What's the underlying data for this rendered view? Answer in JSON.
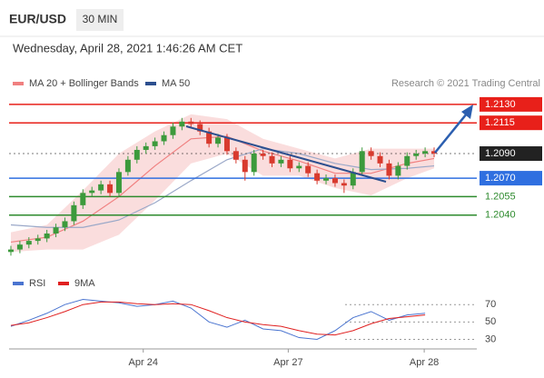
{
  "header": {
    "symbol": "EUR/USD",
    "timeframe": "30 MIN",
    "timestamp": "Wednesday, April 28, 2021 1:46:26 AM CET"
  },
  "chart_data": [
    {
      "type": "candlestick",
      "credit": "Research © 2021 Trading Central",
      "xlim": [
        -0.2,
        47.2
      ],
      "ylim": [
        1.2008,
        1.2141
      ],
      "up_color": "#3c9a3c",
      "down_color": "#d83a2e",
      "candles": {
        "open": [
          1.201,
          1.2012,
          1.2016,
          1.2019,
          1.2021,
          1.2025,
          1.203,
          1.2035,
          1.2048,
          1.2058,
          1.206,
          1.2065,
          1.2058,
          1.2075,
          1.2085,
          1.2093,
          1.2096,
          1.21,
          1.2105,
          1.2112,
          1.2116,
          1.2114,
          1.2108,
          1.2098,
          1.2103,
          1.2092,
          1.2085,
          1.2075,
          1.209,
          1.2088,
          1.2082,
          1.2085,
          1.2078,
          1.208,
          1.2074,
          1.2068,
          1.207,
          1.2066,
          1.2064,
          1.2075,
          1.2092,
          1.2088,
          1.2082,
          1.2072,
          1.208,
          1.2088,
          1.209,
          1.2092
        ],
        "high": [
          1.2015,
          1.2019,
          1.2022,
          1.2024,
          1.2028,
          1.2033,
          1.2038,
          1.2051,
          1.2061,
          1.2063,
          1.2068,
          1.2068,
          1.2078,
          1.2088,
          1.2096,
          1.2099,
          1.2103,
          1.2108,
          1.2115,
          1.2119,
          1.2119,
          1.2117,
          1.2111,
          1.2106,
          1.2106,
          1.2095,
          1.2088,
          1.2093,
          1.2093,
          1.2091,
          1.2088,
          1.2088,
          1.2083,
          1.2083,
          1.2077,
          1.2073,
          1.2073,
          1.2069,
          1.2078,
          1.2095,
          1.2095,
          1.2091,
          1.2085,
          1.2083,
          1.2091,
          1.2093,
          1.2095,
          1.2095
        ],
        "low": [
          1.2007,
          1.2009,
          1.2013,
          1.2016,
          1.2018,
          1.2022,
          1.2027,
          1.2032,
          1.2045,
          1.2055,
          1.2057,
          1.2055,
          1.2055,
          1.2072,
          1.2082,
          1.209,
          1.2093,
          1.2097,
          1.2102,
          1.2109,
          1.2111,
          1.2105,
          1.2095,
          1.2095,
          1.2089,
          1.2082,
          1.2068,
          1.2072,
          1.2085,
          1.2079,
          1.2079,
          1.2075,
          1.2075,
          1.2071,
          1.2065,
          1.2065,
          1.2063,
          1.2058,
          1.2061,
          1.2072,
          1.2085,
          1.2079,
          1.2069,
          1.2069,
          1.2077,
          1.2085,
          1.2087,
          1.2087
        ],
        "close": [
          1.2012,
          1.2016,
          1.2019,
          1.2021,
          1.2025,
          1.203,
          1.2035,
          1.2048,
          1.2058,
          1.206,
          1.2065,
          1.2058,
          1.2075,
          1.2085,
          1.2093,
          1.2096,
          1.21,
          1.2105,
          1.2112,
          1.2116,
          1.2114,
          1.2108,
          1.2098,
          1.2103,
          1.2092,
          1.2085,
          1.2075,
          1.209,
          1.2088,
          1.2082,
          1.2085,
          1.2078,
          1.208,
          1.2074,
          1.2068,
          1.207,
          1.2066,
          1.2064,
          1.2075,
          1.2092,
          1.2088,
          1.2082,
          1.2072,
          1.208,
          1.2088,
          1.209,
          1.2092,
          1.209
        ]
      },
      "series": [
        {
          "name": "MA 20 + Bollinger Bands",
          "color": "#f08080",
          "band_color": "#f9d4d4",
          "x": [
            0,
            4,
            8,
            12,
            16,
            20,
            24,
            28,
            32,
            36,
            40,
            44,
            47
          ],
          "values": [
            1.2018,
            1.2022,
            1.2035,
            1.2055,
            1.208,
            1.2102,
            1.2104,
            1.2092,
            1.2084,
            1.2074,
            1.2074,
            1.2082,
            1.2086
          ],
          "upper": [
            1.2026,
            1.2032,
            1.206,
            1.209,
            1.2108,
            1.2122,
            1.2118,
            1.2102,
            1.2094,
            1.2086,
            1.2094,
            1.2094,
            1.2094
          ],
          "lower": [
            1.201,
            1.2012,
            1.2012,
            1.2024,
            1.2052,
            1.2082,
            1.209,
            1.2072,
            1.2072,
            1.2062,
            1.2056,
            1.207,
            1.2078
          ]
        },
        {
          "name": "MA 50",
          "color": "#2c4f8f",
          "line_color": "#9aa8c8",
          "x": [
            0,
            4,
            8,
            12,
            16,
            20,
            24,
            28,
            32,
            36,
            40,
            44,
            47
          ],
          "values": [
            1.2032,
            1.203,
            1.203,
            1.2036,
            1.205,
            1.2068,
            1.2085,
            1.2094,
            1.209,
            1.2082,
            1.2077,
            1.2078,
            1.208
          ]
        }
      ],
      "levels": [
        {
          "value": 1.213,
          "label": "1.2130",
          "color": "#e8201a",
          "style": "box",
          "line": "solid"
        },
        {
          "value": 1.2115,
          "label": "1.2115",
          "color": "#e8201a",
          "style": "box",
          "line": "solid"
        },
        {
          "value": 1.209,
          "label": "1.2090",
          "color": "#222222",
          "style": "box",
          "line": "dotted"
        },
        {
          "value": 1.207,
          "label": "1.2070",
          "color": "#2f6fe0",
          "style": "box",
          "line": "solid"
        },
        {
          "value": 1.2055,
          "label": "1.2055",
          "color": "#2e8b2e",
          "style": "text",
          "line": "solid"
        },
        {
          "value": 1.204,
          "label": "1.2040",
          "color": "#2e8b2e",
          "style": "text",
          "line": "solid"
        }
      ]
    },
    {
      "type": "line",
      "xlim": [
        -0.2,
        47.2
      ],
      "ylim": [
        20,
        88
      ],
      "yticks": [
        30,
        50,
        70
      ],
      "xticks": [
        {
          "value": 14.7,
          "label": "Apr 24"
        },
        {
          "value": 30.8,
          "label": "Apr 27"
        },
        {
          "value": 45.9,
          "label": "Apr 28"
        }
      ],
      "series": [
        {
          "name": "RSI",
          "color": "#4a74d0",
          "x": [
            0,
            2,
            4,
            6,
            8,
            10,
            12,
            14,
            16,
            18,
            20,
            22,
            24,
            26,
            28,
            30,
            32,
            34,
            36,
            38,
            40,
            42,
            44,
            46
          ],
          "values": [
            45,
            52,
            60,
            70,
            76,
            74,
            72,
            68,
            70,
            74,
            66,
            50,
            44,
            52,
            42,
            40,
            32,
            30,
            40,
            55,
            62,
            52,
            58,
            60
          ]
        },
        {
          "name": "9MA",
          "color": "#e02020",
          "x": [
            0,
            2,
            4,
            6,
            8,
            10,
            12,
            14,
            16,
            18,
            20,
            22,
            24,
            26,
            28,
            30,
            32,
            34,
            36,
            38,
            40,
            42,
            44,
            46
          ],
          "values": [
            46,
            49,
            55,
            62,
            70,
            73,
            73,
            71,
            70,
            71,
            70,
            63,
            55,
            50,
            47,
            45,
            40,
            36,
            35,
            40,
            48,
            54,
            56,
            58
          ]
        }
      ]
    }
  ]
}
